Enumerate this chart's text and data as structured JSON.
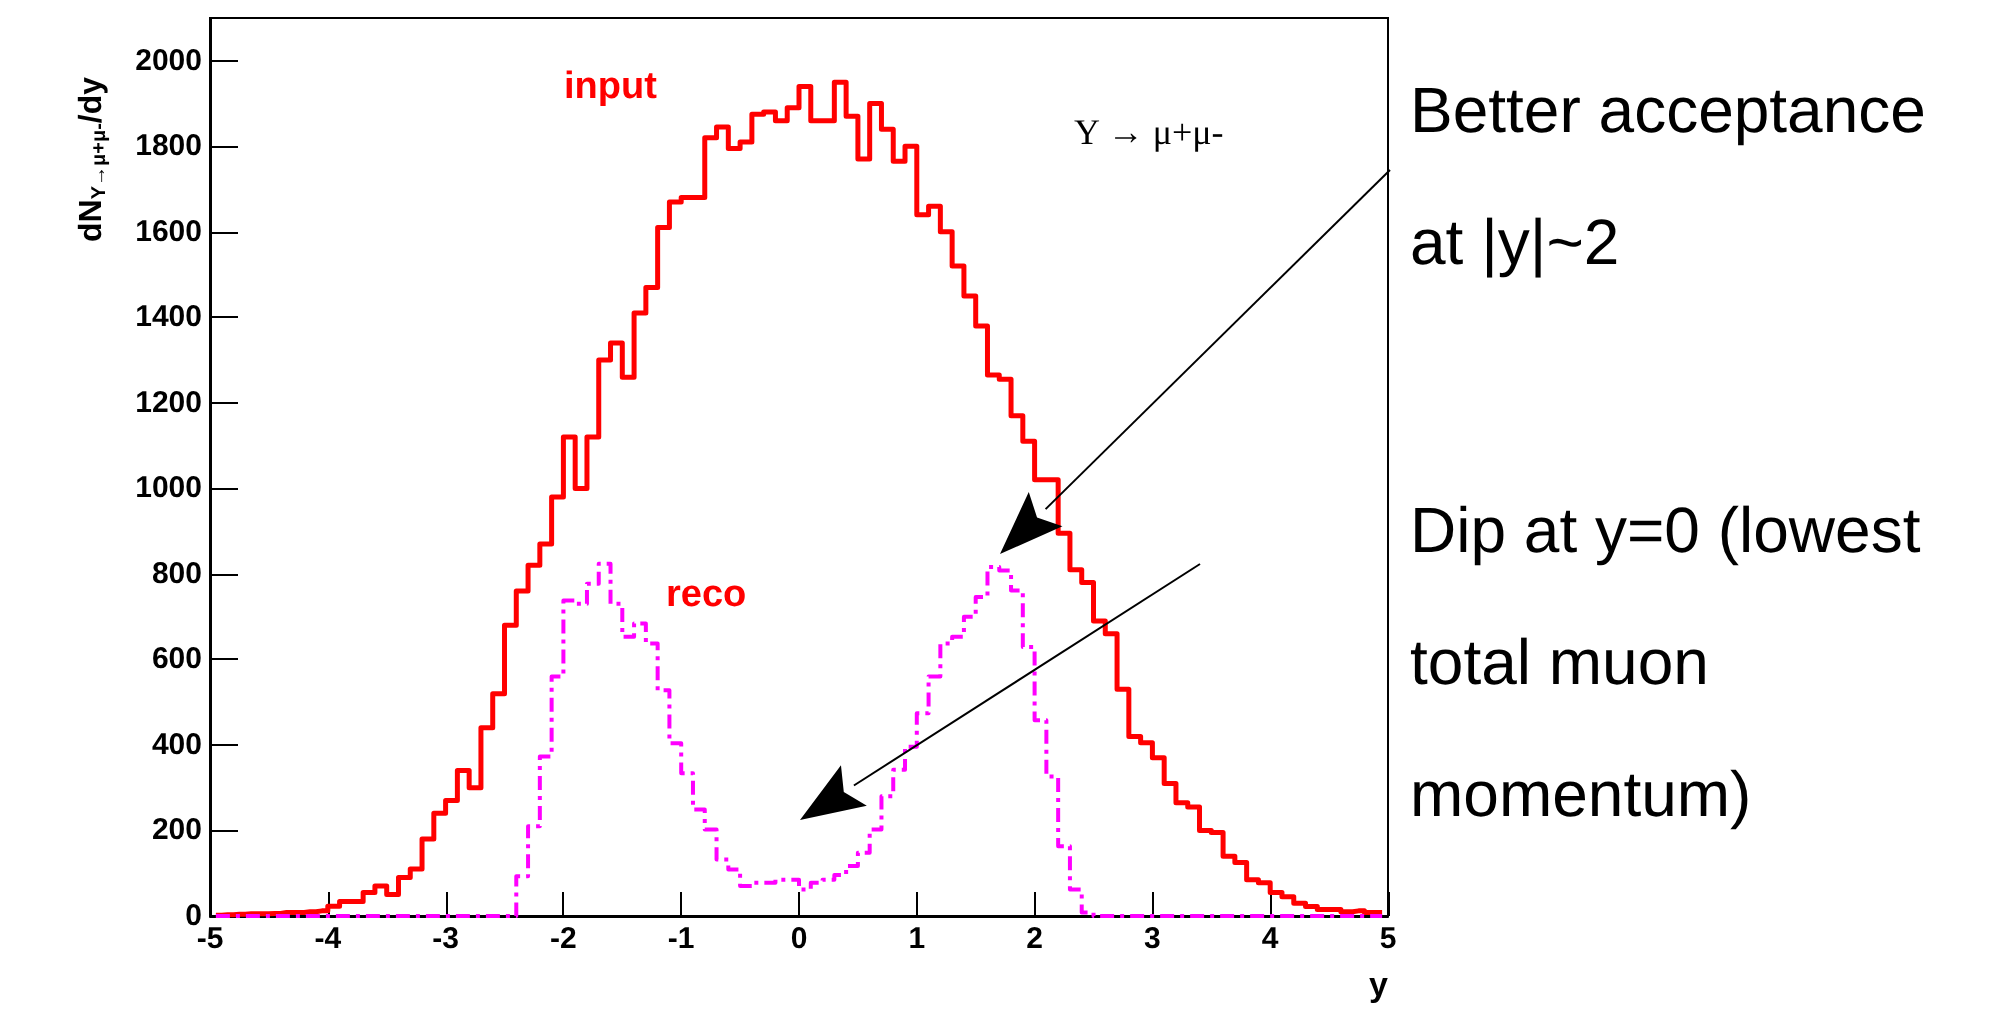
{
  "chart_data": {
    "type": "step",
    "xlabel": "y",
    "ylabel": "dN$_{Υ→μ+μ-}$/dy",
    "x": [
      -4.95,
      -4.85,
      -4.75,
      -4.65,
      -4.55,
      -4.45,
      -4.35,
      -4.25,
      -4.15,
      -4.05,
      -3.95,
      -3.85,
      -3.75,
      -3.65,
      -3.55,
      -3.45,
      -3.35,
      -3.25,
      -3.15,
      -3.05,
      -2.95,
      -2.85,
      -2.75,
      -2.65,
      -2.55,
      -2.45,
      -2.35,
      -2.25,
      -2.15,
      -2.05,
      -1.95,
      -1.85,
      -1.75,
      -1.65,
      -1.55,
      -1.45,
      -1.35,
      -1.25,
      -1.15,
      -1.05,
      -0.95,
      -0.85,
      -0.75,
      -0.65,
      -0.55,
      -0.45,
      -0.35,
      -0.25,
      -0.15,
      -0.05,
      0.05,
      0.15,
      0.25,
      0.35,
      0.45,
      0.55,
      0.65,
      0.75,
      0.85,
      0.95,
      1.05,
      1.15,
      1.25,
      1.35,
      1.45,
      1.55,
      1.65,
      1.75,
      1.85,
      1.95,
      2.05,
      2.15,
      2.25,
      2.35,
      2.45,
      2.55,
      2.65,
      2.75,
      2.85,
      2.95,
      3.05,
      3.15,
      3.25,
      3.35,
      3.45,
      3.55,
      3.65,
      3.75,
      3.85,
      3.95,
      4.05,
      4.15,
      4.25,
      4.35,
      4.45,
      4.55,
      4.65,
      4.75,
      4.85,
      4.95
    ],
    "series": [
      {
        "name": "input",
        "color": "#ff0000",
        "line_style": "solid",
        "values": [
          2,
          3,
          4,
          5,
          5,
          6,
          8,
          8,
          10,
          12,
          23,
          34,
          34,
          55,
          70,
          50,
          90,
          110,
          180,
          240,
          270,
          340,
          300,
          440,
          520,
          680,
          760,
          820,
          870,
          980,
          1120,
          1000,
          1120,
          1300,
          1340,
          1260,
          1410,
          1470,
          1610,
          1670,
          1680,
          1680,
          1820,
          1845,
          1795,
          1810,
          1875,
          1880,
          1860,
          1890,
          1940,
          1860,
          1860,
          1950,
          1870,
          1770,
          1900,
          1840,
          1765,
          1800,
          1640,
          1660,
          1600,
          1520,
          1450,
          1380,
          1265,
          1255,
          1170,
          1110,
          1020,
          1020,
          895,
          810,
          780,
          690,
          660,
          530,
          420,
          405,
          370,
          310,
          265,
          255,
          200,
          195,
          140,
          125,
          85,
          78,
          55,
          45,
          30,
          22,
          15,
          15,
          10,
          12,
          8,
          8
        ]
      },
      {
        "name": "reco",
        "color": "#ff00ff",
        "line_style": "dashed",
        "values": [
          0,
          0,
          0,
          0,
          0,
          0,
          0,
          0,
          0,
          0,
          0,
          0,
          0,
          0,
          0,
          0,
          0,
          0,
          0,
          0,
          0,
          0,
          0,
          0,
          0,
          0,
          93,
          210,
          373,
          560,
          738,
          730,
          777,
          824,
          730,
          653,
          684,
          637,
          528,
          404,
          334,
          249,
          202,
          132,
          109,
          70,
          78,
          78,
          85,
          85,
          62,
          78,
          85,
          96,
          117,
          148,
          202,
          280,
          342,
          396,
          474,
          560,
          637,
          653,
          700,
          746,
          816,
          808,
          761,
          629,
          458,
          326,
          163,
          62,
          8,
          0,
          0,
          0,
          0,
          0,
          0,
          0,
          0,
          0,
          0,
          0,
          0,
          0,
          0,
          0,
          0,
          0,
          0,
          0,
          0,
          0,
          0,
          0,
          0,
          0
        ]
      }
    ],
    "xlim": [
      -5,
      5
    ],
    "ylim": [
      0,
      2100
    ],
    "xticks": [
      -5,
      -4,
      -3,
      -2,
      -1,
      0,
      1,
      2,
      3,
      4,
      5
    ],
    "yticks": [
      0,
      200,
      400,
      600,
      800,
      1000,
      1200,
      1400,
      1600,
      1800,
      2000
    ],
    "annotations": [
      "Υ → μ+μ-",
      "Better acceptance at |y|~2",
      "Dip at y=0 (lowest total muon momentum)"
    ]
  }
}
